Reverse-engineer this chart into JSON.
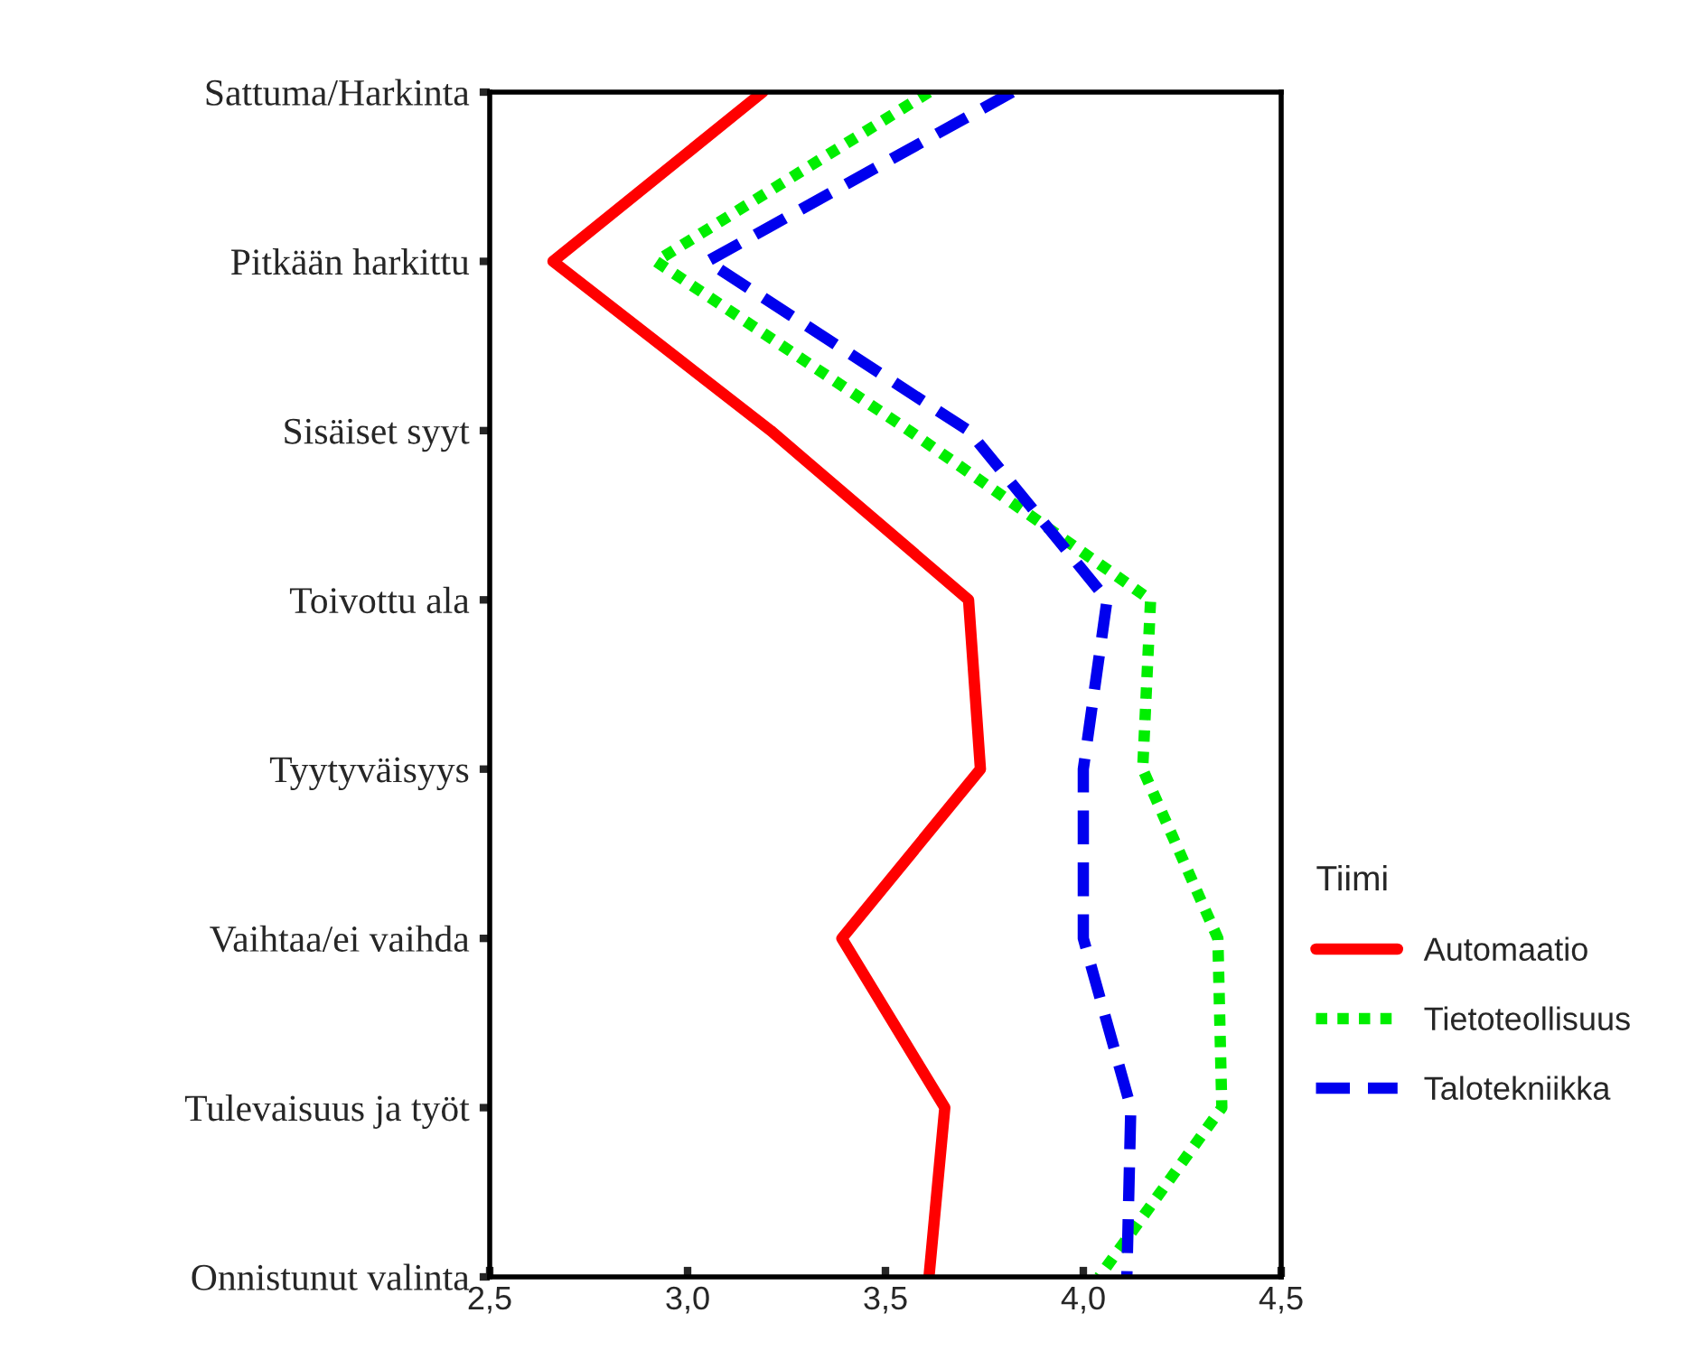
{
  "chart_data": {
    "type": "line",
    "orientation": "horizontal",
    "legend_title": "Tiimi",
    "legend": "right",
    "categories": [
      "Sattuma/Harkinta",
      "Pitkään harkittu",
      "Sisäiset syyt",
      "Toivottu ala",
      "Tyytyväisyys",
      "Vaihtaa/ei vaihda",
      "Tulevaisuus ja työt",
      "Onnistunut valinta"
    ],
    "series": [
      {
        "name": "Automaatio",
        "color": "#ff0000",
        "line_style": "solid",
        "values": [
          3.19,
          2.66,
          3.21,
          3.71,
          3.74,
          3.39,
          3.65,
          3.61
        ]
      },
      {
        "name": "Tietoteollisuus",
        "color": "#00ee00",
        "line_style": "dotted",
        "values": [
          3.61,
          2.92,
          3.56,
          4.17,
          4.15,
          4.34,
          4.35,
          4.04
        ]
      },
      {
        "name": "Talotekniikka",
        "color": "#0000ee",
        "line_style": "dashed",
        "values": [
          3.82,
          3.05,
          3.71,
          4.06,
          4.0,
          4.0,
          4.12,
          4.11
        ]
      }
    ],
    "xlim": [
      2.5,
      4.5
    ],
    "xticks": [
      {
        "value": 2.5,
        "label": "2,5"
      },
      {
        "value": 3.0,
        "label": "3,0"
      },
      {
        "value": 3.5,
        "label": "3,5"
      },
      {
        "value": 4.0,
        "label": "4,0"
      },
      {
        "value": 4.5,
        "label": "4,5"
      }
    ],
    "grid": false,
    "marker": "none"
  }
}
